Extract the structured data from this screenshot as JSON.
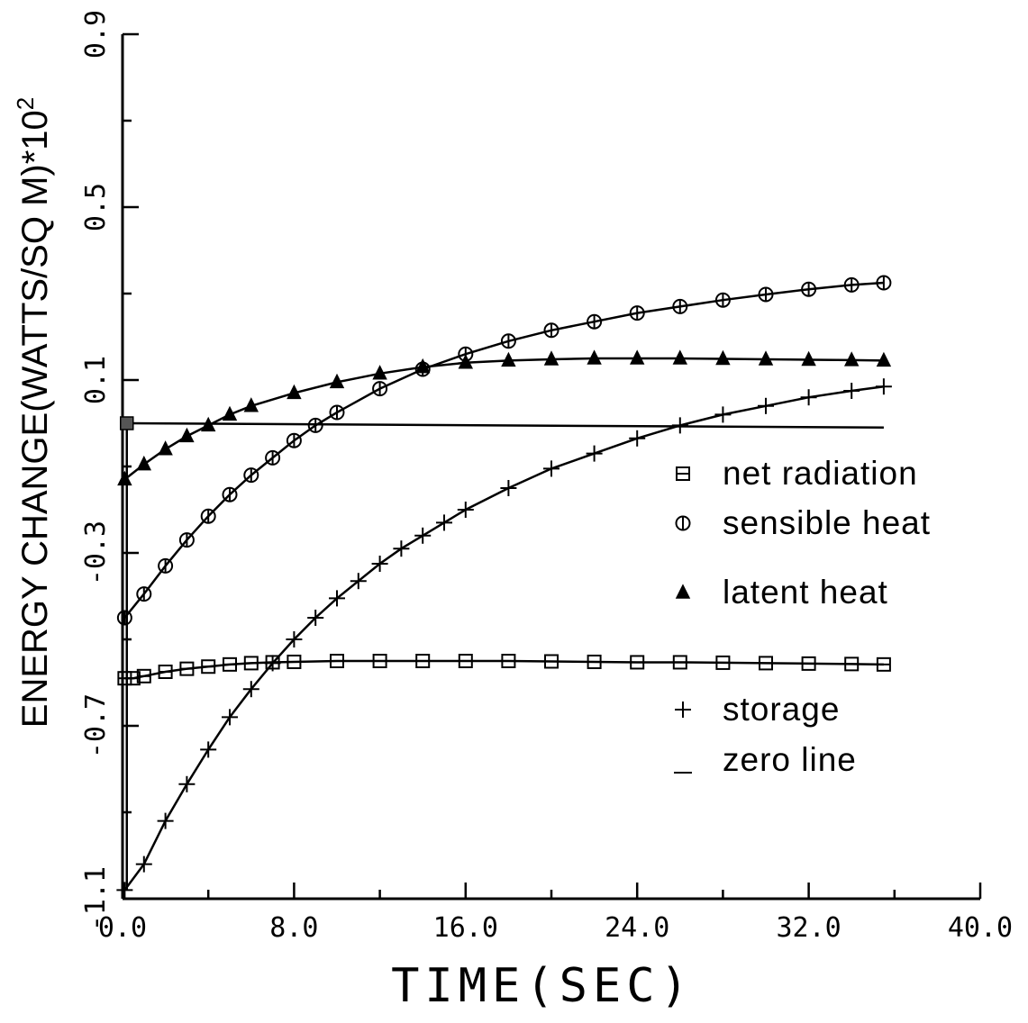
{
  "chart_data": {
    "type": "line",
    "xlabel": "TIME(SEC)",
    "ylabel": "ENERGY CHANGE(WATTS/SQ M)*10",
    "ylabel_exponent": "2",
    "xlim": [
      0,
      40
    ],
    "ylim": [
      -1.1,
      0.9
    ],
    "x_ticks": [
      0,
      8,
      16,
      24,
      32,
      40
    ],
    "x_tick_labels": [
      "0.0",
      "8.0",
      "16.0",
      "24.0",
      "32.0",
      "40.0"
    ],
    "y_ticks": [
      -1.1,
      -0.7,
      -0.3,
      0.1,
      0.5,
      0.9
    ],
    "y_tick_labels": [
      "-1.1",
      "-0.7",
      "-0.3",
      "0.1",
      "0.5",
      "0.9"
    ],
    "legend_position": "right",
    "series": [
      {
        "name": "net radiation",
        "marker": "square",
        "x": [
          0.1,
          0.5,
          1,
          2,
          3,
          4,
          5,
          6,
          7,
          8,
          10,
          12,
          14,
          16,
          18,
          20,
          22,
          24,
          26,
          28,
          30,
          32,
          34,
          35.5
        ],
        "y": [
          -0.59,
          -0.59,
          -0.585,
          -0.575,
          -0.568,
          -0.563,
          -0.558,
          -0.555,
          -0.553,
          -0.552,
          -0.55,
          -0.55,
          -0.55,
          -0.55,
          -0.55,
          -0.551,
          -0.552,
          -0.553,
          -0.553,
          -0.554,
          -0.555,
          -0.556,
          -0.557,
          -0.558
        ]
      },
      {
        "name": "sensible heat",
        "marker": "circle",
        "x": [
          0.1,
          1,
          2,
          3,
          4,
          5,
          6,
          7,
          8,
          9,
          10,
          12,
          14,
          16,
          18,
          20,
          22,
          24,
          26,
          28,
          30,
          32,
          34,
          35.5
        ],
        "y": [
          -0.45,
          -0.395,
          -0.33,
          -0.27,
          -0.215,
          -0.165,
          -0.12,
          -0.08,
          -0.04,
          -0.005,
          0.025,
          0.08,
          0.125,
          0.16,
          0.19,
          0.215,
          0.235,
          0.255,
          0.27,
          0.285,
          0.298,
          0.31,
          0.32,
          0.325
        ]
      },
      {
        "name": "latent heat",
        "marker": "triangle",
        "x": [
          0.1,
          1,
          2,
          3,
          4,
          5,
          6,
          8,
          10,
          12,
          14,
          16,
          18,
          20,
          22,
          24,
          26,
          28,
          30,
          32,
          34,
          35.5
        ],
        "y": [
          -0.13,
          -0.095,
          -0.06,
          -0.03,
          -0.005,
          0.02,
          0.04,
          0.07,
          0.095,
          0.115,
          0.13,
          0.14,
          0.145,
          0.148,
          0.15,
          0.15,
          0.15,
          0.149,
          0.148,
          0.147,
          0.146,
          0.145
        ]
      },
      {
        "name": "storage",
        "marker": "plus",
        "x": [
          0.1,
          1,
          2,
          3,
          4,
          5,
          6,
          7,
          8,
          9,
          10,
          11,
          12,
          13,
          14,
          15,
          16,
          18,
          20,
          22,
          24,
          26,
          28,
          30,
          32,
          34,
          35.5
        ],
        "y": [
          -1.08,
          -1.02,
          -0.92,
          -0.835,
          -0.755,
          -0.68,
          -0.615,
          -0.555,
          -0.5,
          -0.45,
          -0.405,
          -0.365,
          -0.325,
          -0.29,
          -0.26,
          -0.23,
          -0.2,
          -0.15,
          -0.105,
          -0.07,
          -0.035,
          -0.005,
          0.02,
          0.04,
          0.06,
          0.075,
          0.085
        ]
      },
      {
        "name": "zero line",
        "marker": "none",
        "x": [
          0.2,
          35.5
        ],
        "y": [
          0.0,
          -0.01
        ]
      }
    ]
  }
}
